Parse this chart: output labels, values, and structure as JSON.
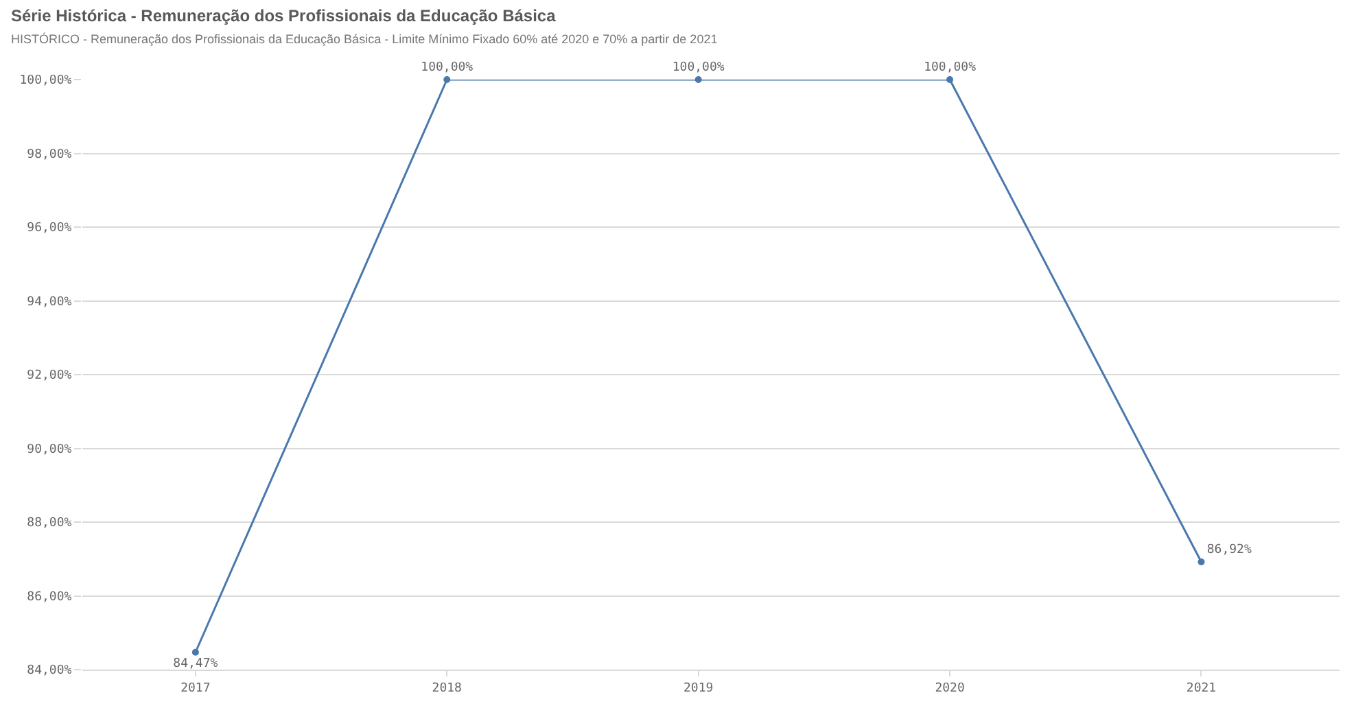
{
  "chart_data": {
    "type": "line",
    "title": "Série Histórica - Remuneração dos Profissionais da Educação Básica",
    "subtitle": "HISTÓRICO - Remuneração dos Profissionais da Educação Básica - Limite Mínimo Fixado 60% até 2020 e 70% a partir de 2021",
    "categories": [
      "2017",
      "2018",
      "2019",
      "2020",
      "2021"
    ],
    "series": [
      {
        "color": "#4a78ad",
        "values": [
          84.47,
          100,
          100,
          100,
          86.92
        ],
        "value_labels": [
          "84,47%",
          "100,00%",
          "100,00%",
          "100,00%",
          "86,92%"
        ]
      }
    ],
    "ylim": [
      84,
      100
    ],
    "yticks": [
      {
        "value": 84,
        "label": "84,00%"
      },
      {
        "value": 86,
        "label": "86,00%"
      },
      {
        "value": 88,
        "label": "88,00%"
      },
      {
        "value": 90,
        "label": "90,00%"
      },
      {
        "value": 92,
        "label": "92,00%"
      },
      {
        "value": 94,
        "label": "94,00%"
      },
      {
        "value": 96,
        "label": "96,00%"
      },
      {
        "value": 98,
        "label": "98,00%"
      },
      {
        "value": 100,
        "label": "100,00%"
      }
    ],
    "grid": "y",
    "marker": "circle",
    "line_style": "solid"
  }
}
